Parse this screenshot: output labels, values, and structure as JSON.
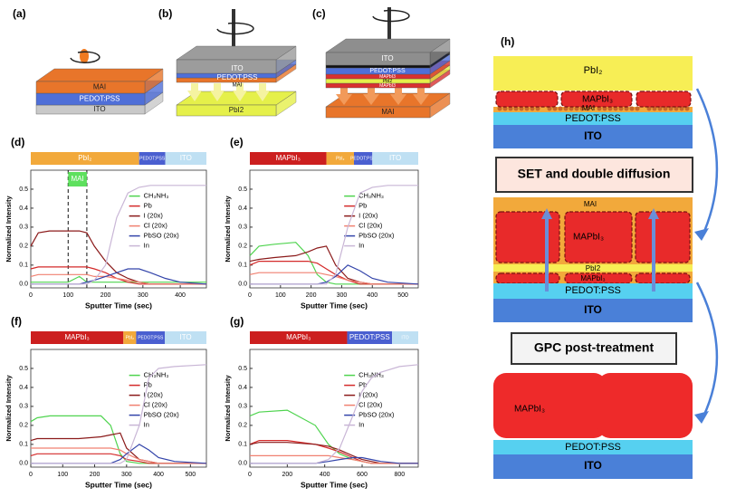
{
  "chart_data": [
    {
      "type": "line",
      "panel_label": "(d)",
      "x_label": "Sputter Time (sec)",
      "y_label": "Normalized Intensity",
      "x": [
        0,
        20,
        50,
        100,
        130,
        150,
        170,
        200,
        230,
        260,
        290,
        320,
        360,
        400,
        470
      ],
      "series": [
        {
          "name": "CH₃NH₃",
          "color": "#4fd44f",
          "values": [
            0.01,
            0.01,
            0.01,
            0.01,
            0.04,
            0.01,
            0.01,
            0.01,
            0.01,
            0.01,
            0.01,
            0.01,
            0.01,
            0.01,
            0.01
          ]
        },
        {
          "name": "Pb",
          "color": "#d42a2a",
          "values": [
            0.08,
            0.09,
            0.09,
            0.09,
            0.09,
            0.09,
            0.08,
            0.06,
            0.03,
            0.01,
            0,
            0,
            0,
            0,
            0
          ]
        },
        {
          "name": "I (20x)",
          "color": "#8b1a1a",
          "values": [
            0.2,
            0.27,
            0.28,
            0.28,
            0.28,
            0.27,
            0.2,
            0.12,
            0.06,
            0.03,
            0.01,
            0,
            0,
            0,
            0
          ]
        },
        {
          "name": "Cl (20x)",
          "color": "#f08070",
          "values": [
            0.04,
            0.05,
            0.05,
            0.05,
            0.05,
            0.05,
            0.04,
            0.04,
            0.03,
            0.02,
            0.01,
            0,
            0,
            0,
            0
          ]
        },
        {
          "name": "PbSO (20x)",
          "color": "#3344aa",
          "values": [
            0,
            0,
            0,
            0,
            0,
            0.01,
            0.02,
            0.04,
            0.06,
            0.08,
            0.08,
            0.06,
            0.03,
            0.01,
            0
          ]
        },
        {
          "name": "In",
          "color": "#c9b6d6",
          "values": [
            0,
            0,
            0,
            0,
            0,
            0,
            0.02,
            0.1,
            0.35,
            0.48,
            0.51,
            0.52,
            0.52,
            0.52,
            0.52
          ]
        }
      ],
      "xlim": [
        0,
        470
      ],
      "xticks": [
        0,
        100,
        200,
        300,
        400
      ],
      "ylim": [
        -0.02,
        0.6
      ],
      "yticks": [
        {
          "value": 0,
          "label": "0.0"
        },
        0.1,
        0.2,
        0.3,
        0.4,
        0.5
      ],
      "layers": [
        {
          "label": "PbI₂",
          "color": "#f2a93b",
          "end": 290
        },
        {
          "label": "PEDOT:PSS",
          "color": "#4a5fd0",
          "end": 360
        },
        {
          "label": "ITO",
          "color": "#bfe0f3",
          "end": 470
        }
      ],
      "annotation": {
        "label": "MAI",
        "color": "#5ee05e",
        "x": [
          100,
          150
        ]
      }
    },
    {
      "type": "line",
      "panel_label": "(e)",
      "x_label": "Sputter Time (sec)",
      "y_label": "Normalized Intensity",
      "x": [
        0,
        30,
        80,
        150,
        190,
        220,
        250,
        280,
        320,
        360,
        400,
        450,
        550
      ],
      "series": [
        {
          "name": "CH₃NH₃",
          "color": "#4fd44f",
          "values": [
            0.15,
            0.2,
            0.21,
            0.22,
            0.15,
            0.05,
            0.01,
            0,
            0,
            0,
            0,
            0,
            0
          ]
        },
        {
          "name": "Pb",
          "color": "#d42a2a",
          "values": [
            0.1,
            0.12,
            0.12,
            0.12,
            0.12,
            0.11,
            0.08,
            0.05,
            0.02,
            0,
            0,
            0,
            0
          ]
        },
        {
          "name": "I (20x)",
          "color": "#8b1a1a",
          "values": [
            0.12,
            0.13,
            0.14,
            0.15,
            0.17,
            0.19,
            0.2,
            0.1,
            0.03,
            0.01,
            0,
            0,
            0
          ]
        },
        {
          "name": "Cl (20x)",
          "color": "#f08070",
          "values": [
            0.05,
            0.06,
            0.06,
            0.06,
            0.06,
            0.06,
            0.05,
            0.04,
            0.02,
            0.01,
            0,
            0,
            0
          ]
        },
        {
          "name": "PbSO (20x)",
          "color": "#3344aa",
          "values": [
            0,
            0,
            0,
            0,
            0,
            0,
            0.01,
            0.04,
            0.1,
            0.07,
            0.03,
            0.01,
            0
          ]
        },
        {
          "name": "In",
          "color": "#c9b6d6",
          "values": [
            0,
            0,
            0,
            0,
            0,
            0,
            0,
            0.05,
            0.3,
            0.48,
            0.51,
            0.52,
            0.52
          ]
        }
      ],
      "xlim": [
        0,
        550
      ],
      "xticks": [
        0,
        100,
        200,
        300,
        400,
        500
      ],
      "ylim": [
        -0.02,
        0.6
      ],
      "yticks": [
        {
          "value": 0,
          "label": "0.0"
        },
        0.1,
        0.2,
        0.3,
        0.4,
        0.5
      ],
      "layers": [
        {
          "label": "MAPbI₃",
          "color": "#cc1f1f",
          "end": 250
        },
        {
          "label": "PbI₂",
          "color": "#f2a93b",
          "end": 340
        },
        {
          "label": "PEDOT:PSS",
          "color": "#4a5fd0",
          "end": 400
        },
        {
          "label": "ITO",
          "color": "#bfe0f3",
          "end": 550
        }
      ]
    },
    {
      "type": "line",
      "panel_label": "(f)",
      "x_label": "Sputter Time (sec)",
      "y_label": "Normalized Intensity",
      "x": [
        0,
        20,
        60,
        150,
        220,
        250,
        280,
        300,
        340,
        370,
        400,
        450,
        550
      ],
      "series": [
        {
          "name": "CH₃NH₃",
          "color": "#4fd44f",
          "values": [
            0.22,
            0.24,
            0.25,
            0.25,
            0.25,
            0.2,
            0.05,
            0.01,
            0,
            0,
            0,
            0,
            0
          ]
        },
        {
          "name": "Pb",
          "color": "#d42a2a",
          "values": [
            0.04,
            0.05,
            0.05,
            0.05,
            0.05,
            0.05,
            0.04,
            0.02,
            0.01,
            0,
            0,
            0,
            0
          ]
        },
        {
          "name": "I (20x)",
          "color": "#8b1a1a",
          "values": [
            0.12,
            0.13,
            0.13,
            0.13,
            0.14,
            0.15,
            0.16,
            0.08,
            0.02,
            0.01,
            0,
            0,
            0
          ]
        },
        {
          "name": "Cl (20x)",
          "color": "#f08070",
          "values": [
            0.08,
            0.08,
            0.08,
            0.08,
            0.08,
            0.08,
            0.07,
            0.05,
            0.02,
            0.01,
            0,
            0,
            0
          ]
        },
        {
          "name": "PbSO (20x)",
          "color": "#3344aa",
          "values": [
            0,
            0,
            0,
            0,
            0,
            0,
            0.02,
            0.05,
            0.1,
            0.07,
            0.03,
            0.01,
            0
          ]
        },
        {
          "name": "In",
          "color": "#c9b6d6",
          "values": [
            0,
            0,
            0,
            0,
            0,
            0,
            0,
            0.02,
            0.2,
            0.45,
            0.5,
            0.51,
            0.52
          ]
        }
      ],
      "xlim": [
        0,
        550
      ],
      "xticks": [
        0,
        100,
        200,
        300,
        400,
        500
      ],
      "ylim": [
        -0.02,
        0.6
      ],
      "yticks": [
        {
          "value": 0,
          "label": "0.0"
        },
        0.1,
        0.2,
        0.3,
        0.4,
        0.5
      ],
      "layers": [
        {
          "label": "MAPbI₃",
          "color": "#cc1f1f",
          "end": 290
        },
        {
          "label": "PbI₂",
          "color": "#f2a93b",
          "end": 330
        },
        {
          "label": "PEDOT:PSS",
          "color": "#4a5fd0",
          "end": 420
        },
        {
          "label": "ITO",
          "color": "#bfe0f3",
          "end": 550
        }
      ]
    },
    {
      "type": "line",
      "panel_label": "(g)",
      "x_label": "Sputter Time (sec)",
      "y_label": "Normalized Intensity",
      "x": [
        0,
        50,
        200,
        350,
        420,
        480,
        550,
        600,
        650,
        700,
        800,
        900
      ],
      "series": [
        {
          "name": "CH₃NH₃",
          "color": "#4fd44f",
          "values": [
            0.25,
            0.27,
            0.28,
            0.2,
            0.1,
            0.05,
            0.02,
            0.01,
            0,
            0,
            0,
            0
          ]
        },
        {
          "name": "Pb",
          "color": "#d42a2a",
          "values": [
            0.1,
            0.12,
            0.12,
            0.1,
            0.08,
            0.06,
            0.03,
            0.01,
            0,
            0,
            0,
            0
          ]
        },
        {
          "name": "I (20x)",
          "color": "#8b1a1a",
          "values": [
            0.1,
            0.11,
            0.11,
            0.1,
            0.09,
            0.07,
            0.04,
            0.02,
            0.01,
            0,
            0,
            0
          ]
        },
        {
          "name": "Cl (20x)",
          "color": "#f08070",
          "values": [
            0.04,
            0.04,
            0.04,
            0.04,
            0.04,
            0.03,
            0.02,
            0.01,
            0,
            0,
            0,
            0
          ]
        },
        {
          "name": "PbSO (20x)",
          "color": "#3344aa",
          "values": [
            0,
            0,
            0,
            0,
            0.01,
            0.02,
            0.03,
            0.03,
            0.02,
            0.01,
            0,
            0
          ]
        },
        {
          "name": "In",
          "color": "#c9b6d6",
          "values": [
            0,
            0,
            0,
            0,
            0.02,
            0.08,
            0.25,
            0.38,
            0.45,
            0.48,
            0.51,
            0.52
          ]
        }
      ],
      "xlim": [
        0,
        900
      ],
      "xticks": [
        0,
        200,
        400,
        600,
        800
      ],
      "ylim": [
        -0.02,
        0.6
      ],
      "yticks": [
        {
          "value": 0,
          "label": "0.0"
        },
        0.1,
        0.2,
        0.3,
        0.4,
        0.5
      ],
      "layers": [
        {
          "label": "MAPbI₃",
          "color": "#cc1f1f",
          "end": 520
        },
        {
          "label": "PEDOT:PSS",
          "color": "#4a5fd0",
          "end": 760
        },
        {
          "label": "ITO",
          "color": "#bfe0f3",
          "end": 900
        }
      ]
    }
  ],
  "figure": {
    "panel_a": {
      "label": "(a)",
      "layers": [
        "MAI",
        "PEDOT:PSS",
        "ITO"
      ]
    },
    "panel_b": {
      "label": "(b)",
      "layers": [
        "ITO",
        "PEDOT:PSS",
        "MAI",
        "PbI2"
      ]
    },
    "panel_c": {
      "label": "(c)",
      "layers": [
        "ITO",
        "PEDOT:PSS",
        "MAPbI3",
        "PbI2",
        "MAPbI3",
        "MAI"
      ]
    },
    "panel_h": {
      "label": "(h)",
      "stage_1": [
        "PbI₂",
        "MAPbI₃",
        "MAI",
        "PEDOT:PSS",
        "ITO"
      ],
      "step_1": "SET and double diffusion",
      "stage_2": [
        "MAI",
        "MAPbI₃",
        "PbI2",
        "MAPbI₃",
        "PEDOT:PSS",
        "ITO"
      ],
      "step_2": "GPC post-treatment",
      "stage_3": [
        "MAPbI₃",
        "PEDOT:PSS",
        "ITO"
      ]
    }
  }
}
